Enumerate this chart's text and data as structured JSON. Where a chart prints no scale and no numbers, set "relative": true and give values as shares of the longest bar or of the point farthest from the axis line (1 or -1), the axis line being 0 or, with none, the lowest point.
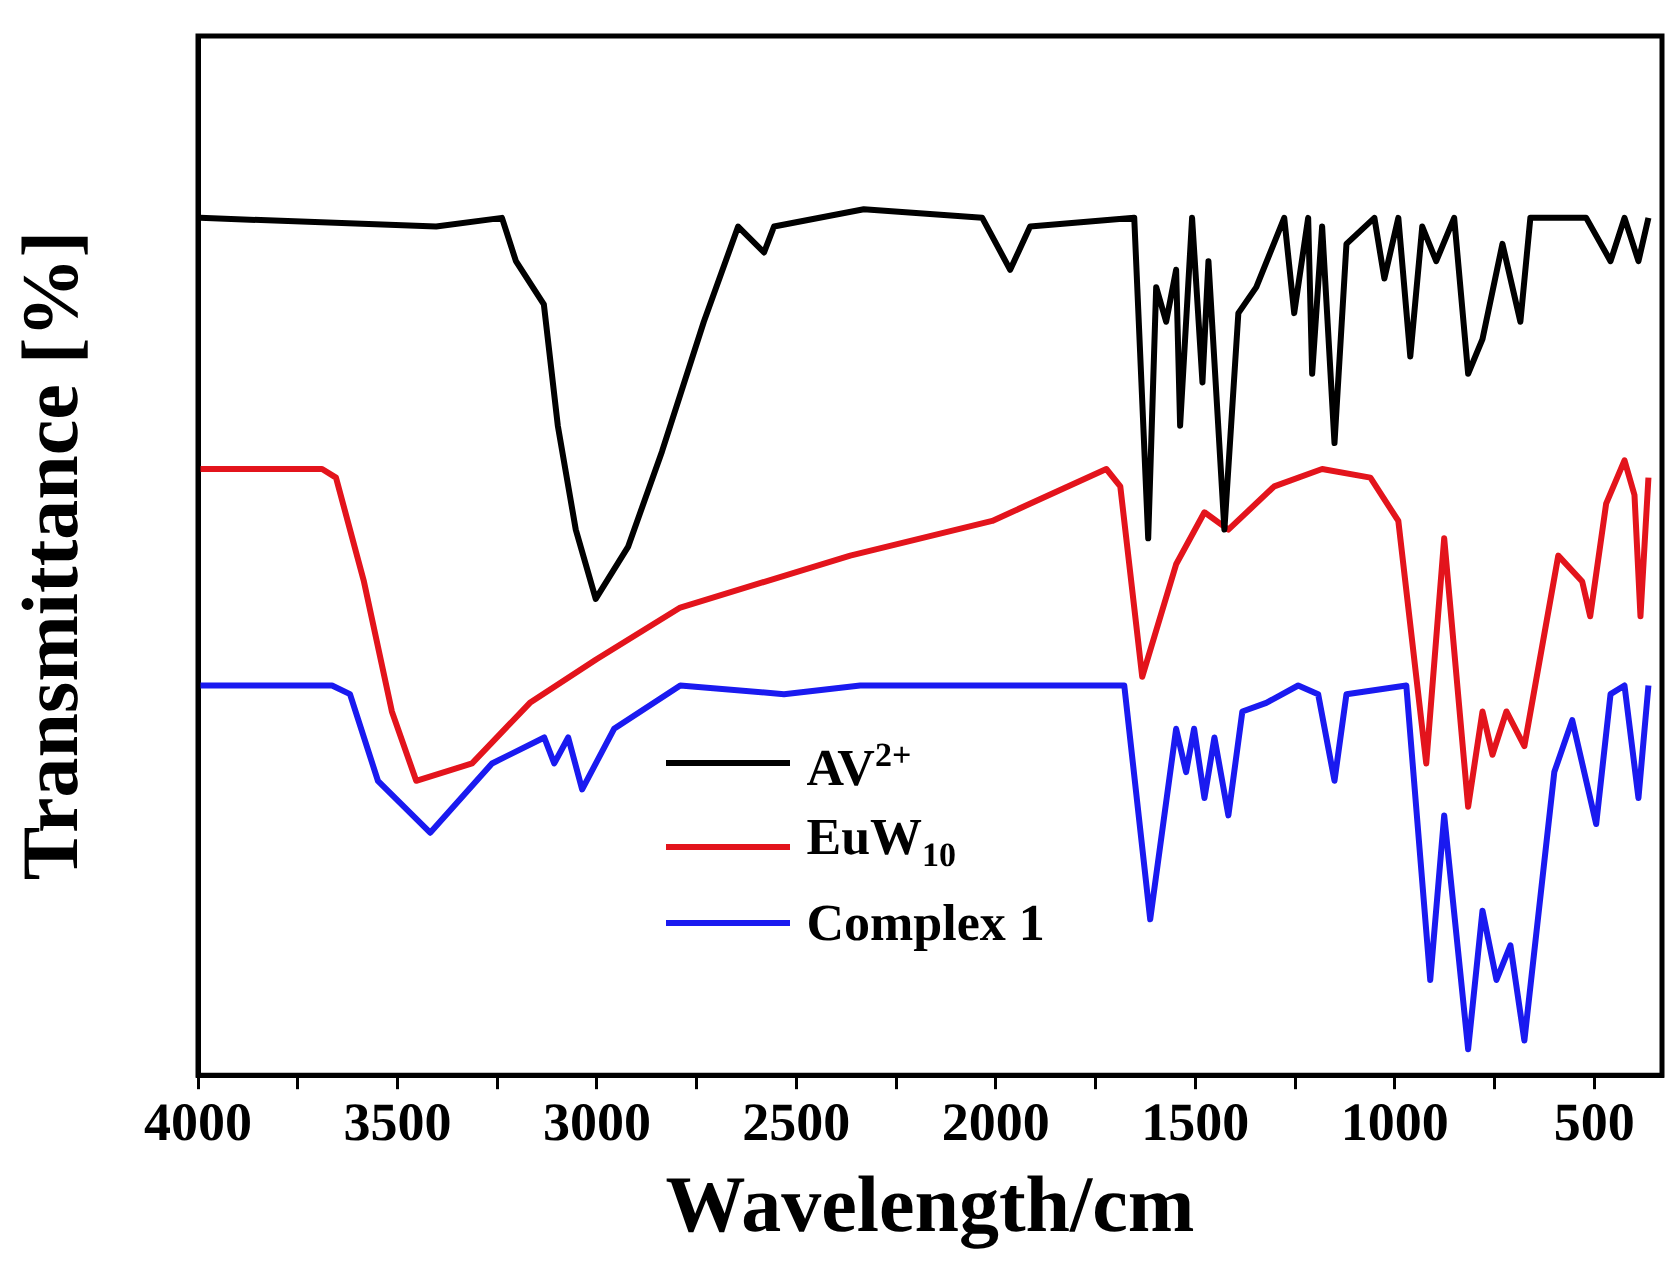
{
  "chart_data": {
    "type": "line",
    "relative": true,
    "xlabel": "Wavelength/cm",
    "ylabel": "Transmittance [%]",
    "xlim": [
      4000,
      330
    ],
    "xticks": [
      4000,
      {
        "value": 3750,
        "label": null
      },
      3500,
      {
        "value": 3250,
        "label": null
      },
      3000,
      {
        "value": 2750,
        "label": null
      },
      2500,
      {
        "value": 2250,
        "label": null
      },
      2000,
      {
        "value": 1750,
        "label": null
      },
      1500,
      {
        "value": 1250,
        "label": null
      },
      1000,
      {
        "value": 750,
        "label": null
      },
      500
    ],
    "grid": false,
    "legend": "bottom",
    "marker": "none",
    "line_style": "solid",
    "series": [
      {
        "name": "AV$^{2+}$",
        "color": "#000000",
        "x": [
          3995,
          3403,
          3238,
          3203,
          3133,
          3098,
          3053,
          3003,
          2922,
          2837,
          2732,
          2646,
          2581,
          2556,
          2331,
          2034,
          1964,
          1914,
          1653,
          1618,
          1598,
          1573,
          1548,
          1538,
          1508,
          1482,
          1467,
          1427,
          1392,
          1347,
          1277,
          1252,
          1217,
          1207,
          1182,
          1151,
          1121,
          1051,
          1026,
          991,
          961,
          931,
          896,
          851,
          816,
          780,
          730,
          685,
          660,
          520,
          459,
          424,
          389,
          364
        ],
        "values": [
          0.99,
          0.98,
          0.99,
          0.94,
          0.89,
          0.75,
          0.63,
          0.55,
          0.61,
          0.72,
          0.87,
          0.98,
          0.95,
          0.98,
          1.0,
          0.99,
          0.93,
          0.98,
          0.99,
          0.62,
          0.91,
          0.87,
          0.93,
          0.75,
          0.99,
          0.8,
          0.94,
          0.63,
          0.88,
          0.91,
          0.99,
          0.88,
          0.99,
          0.81,
          0.98,
          0.73,
          0.96,
          0.99,
          0.92,
          0.99,
          0.83,
          0.98,
          0.94,
          0.99,
          0.81,
          0.85,
          0.96,
          0.87,
          0.99,
          0.99,
          0.94,
          0.99,
          0.94,
          0.99
        ]
      },
      {
        "name": "EuW$_{10}$",
        "color": "#e3141c",
        "x": [
          3995,
          3689,
          3654,
          3584,
          3514,
          3453,
          3313,
          3168,
          3002,
          2791,
          2365,
          2009,
          1723,
          1688,
          1633,
          1548,
          1477,
          1417,
          1302,
          1182,
          1061,
          991,
          921,
          876,
          816,
          780,
          755,
          720,
          675,
          590,
          530,
          510,
          470,
          424,
          399,
          384,
          364
        ],
        "values": [
          0.7,
          0.7,
          0.69,
          0.57,
          0.42,
          0.34,
          0.36,
          0.43,
          0.48,
          0.54,
          0.6,
          0.64,
          0.7,
          0.68,
          0.46,
          0.59,
          0.65,
          0.63,
          0.68,
          0.7,
          0.69,
          0.64,
          0.36,
          0.62,
          0.31,
          0.42,
          0.37,
          0.42,
          0.38,
          0.6,
          0.57,
          0.53,
          0.66,
          0.71,
          0.67,
          0.53,
          0.69
        ]
      },
      {
        "name": "Complex 1",
        "color": "#1a1af0",
        "x": [
          3995,
          3664,
          3619,
          3549,
          3418,
          3263,
          3132,
          3107,
          3072,
          3037,
          2957,
          2791,
          2531,
          2340,
          1678,
          1613,
          1548,
          1523,
          1503,
          1477,
          1452,
          1417,
          1382,
          1322,
          1242,
          1192,
          1151,
          1121,
          971,
          911,
          876,
          816,
          780,
          745,
          710,
          675,
          600,
          555,
          495,
          459,
          424,
          389,
          364
        ],
        "values": [
          0.45,
          0.45,
          0.44,
          0.34,
          0.28,
          0.36,
          0.39,
          0.36,
          0.39,
          0.33,
          0.4,
          0.45,
          0.44,
          0.45,
          0.45,
          0.18,
          0.4,
          0.35,
          0.4,
          0.32,
          0.39,
          0.3,
          0.42,
          0.43,
          0.45,
          0.44,
          0.34,
          0.44,
          0.45,
          0.11,
          0.3,
          0.03,
          0.19,
          0.11,
          0.15,
          0.04,
          0.35,
          0.41,
          0.29,
          0.44,
          0.45,
          0.32,
          0.45
        ]
      }
    ]
  }
}
